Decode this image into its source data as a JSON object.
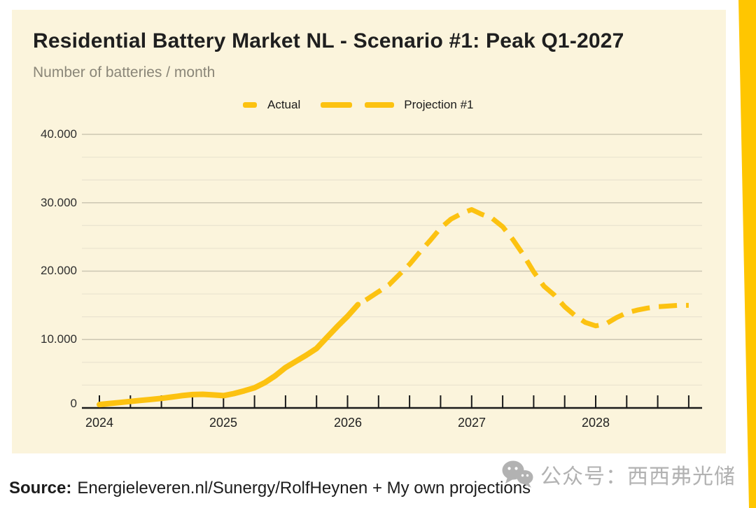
{
  "colors": {
    "page_bg": "#FFFFFF",
    "panel_bg": "#FBF4DC",
    "stripe": "#FFC601",
    "grid_major": "#CCC6B2",
    "grid_minor": "#EBE5D0",
    "axis": "#1A1A1A",
    "line_yellow": "#FCC211",
    "subtitle_gray": "#8A8678",
    "watermark_gray": "#B2B2B2"
  },
  "header": {
    "title": "Residential Battery Market NL - Scenario #1: Peak Q1-2027",
    "subtitle": "Number of batteries / month"
  },
  "footer": {
    "source_label": "Source:",
    "source_text": "Energieleveren.nl/Sunergy/RolfHeynen + My own projections"
  },
  "watermark": {
    "icon": "wechat-icon",
    "text": "公众号：西西弗光储"
  },
  "chart_data": {
    "type": "line",
    "title": "Residential Battery Market NL - Scenario #1: Peak Q1-2027",
    "subtitle": "Number of batteries / month",
    "line_color": "#FCC211",
    "legend_position": "top-center",
    "grid": "horizontal, majors every 10000 with two minor lines between",
    "x_axis": {
      "tick_labels": [
        "2024",
        "2025",
        "2026",
        "2027",
        "2028"
      ],
      "tick_interval": "quarter",
      "range_years": [
        2024.0,
        2028.75
      ]
    },
    "y_axis": {
      "tick_labels": [
        "0",
        "10.000",
        "20.000",
        "30.000",
        "40.000"
      ],
      "tick_values": [
        0,
        10000,
        20000,
        30000,
        40000
      ],
      "ylim": [
        0,
        40000
      ]
    },
    "series": [
      {
        "name": "Actual",
        "style": "solid",
        "start_month": "2024-01",
        "values": [
          500,
          650,
          800,
          950,
          1100,
          1250,
          1400,
          1600,
          1800,
          1950,
          2000,
          1900,
          1800,
          2100,
          2500,
          2950,
          3700,
          4700,
          5900,
          6800,
          7700,
          8700,
          10300,
          11900,
          13400,
          15100
        ]
      },
      {
        "name": "Projection #1",
        "style": "dashed",
        "start_month": "2026-02",
        "values": [
          15100,
          16000,
          17000,
          18000,
          19500,
          21000,
          22800,
          24500,
          26300,
          27600,
          28400,
          29000,
          28300,
          27700,
          26500,
          24600,
          22400,
          19900,
          17800,
          16500,
          14800,
          13500,
          12500,
          12000,
          12300,
          13200,
          13900,
          14300,
          14600,
          14800,
          14900,
          15000,
          15000
        ]
      }
    ]
  }
}
